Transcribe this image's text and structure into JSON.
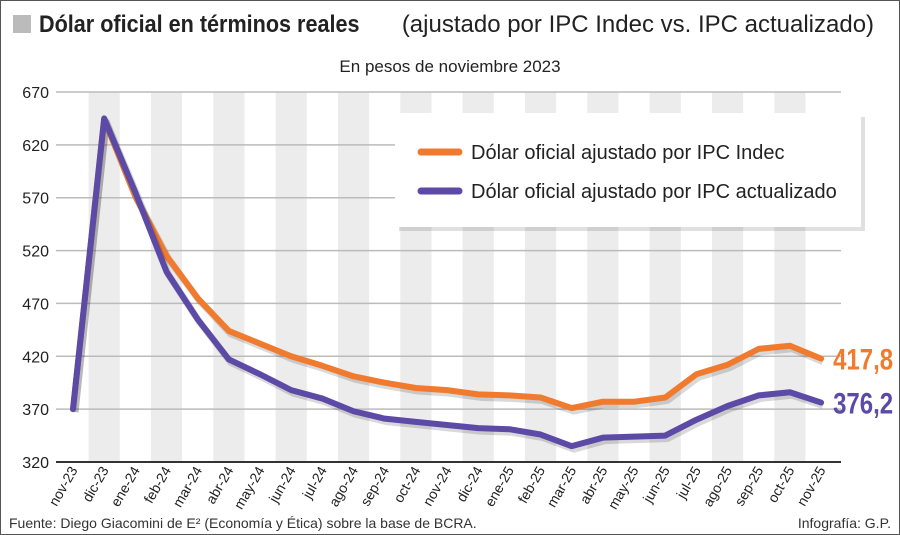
{
  "title_bold": "Dólar oficial en términos reales",
  "title_rest": "(ajustado por IPC Indec vs. IPC actualizado)",
  "subtitle": "En pesos de noviembre 2023",
  "footer_source": "Fuente: Diego Giacomini de E² (Economía y Ética) sobre la base de BCRA.",
  "footer_credit": "Infografía: G.P.",
  "chart_data": {
    "type": "line",
    "ylim": [
      320,
      670
    ],
    "yticks": [
      320,
      370,
      420,
      470,
      520,
      570,
      620,
      670
    ],
    "grid": true,
    "legend_placement": "top-right",
    "categories": [
      "nov-23",
      "dic-23",
      "ene-24",
      "feb-24",
      "mar-24",
      "abr-24",
      "may-24",
      "jun-24",
      "jul-24",
      "ago-24",
      "sep-24",
      "oct-24",
      "nov-24",
      "dic-24",
      "ene-25",
      "feb-25",
      "mar-25",
      "abr-25",
      "may-25",
      "jun-25",
      "jul-25",
      "ago-25",
      "sep-25",
      "oct-25",
      "nov-25"
    ],
    "series": [
      {
        "name": "Dólar oficial ajustado por IPC Indec",
        "color": "#f07b2e",
        "end_label": "417,8",
        "values": [
          370,
          644,
          571,
          515,
          475,
          444,
          432,
          420,
          411,
          401,
          395,
          390,
          388,
          384,
          383,
          381,
          371,
          377,
          377,
          381,
          403,
          412,
          427,
          430,
          417.8
        ]
      },
      {
        "name": "Dólar oficial ajustado por IPC actualizado",
        "color": "#5b4aa6",
        "end_label": "376,2",
        "values": [
          370,
          645,
          575,
          500,
          455,
          417,
          403,
          388,
          380,
          368,
          361,
          358,
          355,
          352,
          351,
          346,
          335,
          343,
          344,
          345,
          360,
          373,
          383,
          386,
          376.2
        ]
      }
    ]
  }
}
